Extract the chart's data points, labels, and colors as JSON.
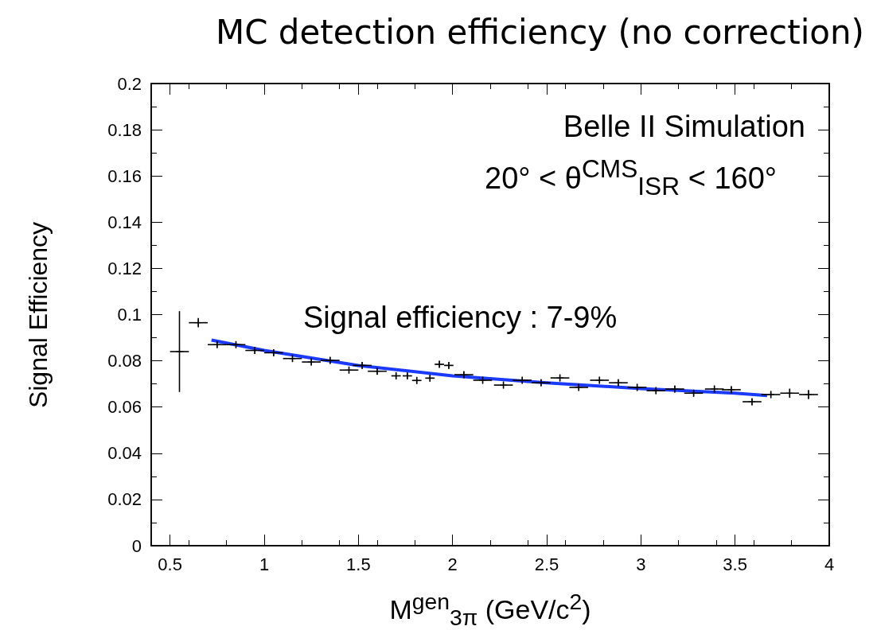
{
  "chart_data": {
    "type": "scatter",
    "title": "MC detection efficiency (no correction)",
    "xlabel": "M$^{gen}$$_{3π}$ (GeV/c$^{2}$)",
    "ylabel": "Signal Efficiency",
    "annotations": [
      "Belle II Simulation",
      "20° < θ$^{CMS}$$_{ISR}$ < 160°",
      "Signal efficiency : 7-9%"
    ],
    "xlim": [
      0.4,
      4
    ],
    "xticks": [
      0.5,
      1,
      1.5,
      2,
      2.5,
      3,
      3.5,
      4
    ],
    "ylim": [
      0,
      0.2
    ],
    "yticks": [
      0,
      0.02,
      0.04,
      0.06,
      0.08,
      0.1,
      0.12,
      0.14,
      0.16,
      0.18,
      0.2
    ],
    "grid": false,
    "series": [
      {
        "color": "#000000",
        "x": [
          0.55,
          0.65,
          0.75,
          0.85,
          0.95,
          1.05,
          1.15,
          1.25,
          1.35,
          1.45,
          1.52,
          1.6,
          1.7,
          1.76,
          1.81,
          1.88,
          1.93,
          1.98,
          2.06,
          2.16,
          2.27,
          2.37,
          2.47,
          2.57,
          2.67,
          2.78,
          2.88,
          2.98,
          3.08,
          3.18,
          3.28,
          3.39,
          3.48,
          3.59,
          3.69,
          3.79,
          3.89
        ],
        "values": [
          0.084,
          0.0965,
          0.087,
          0.087,
          0.0845,
          0.0835,
          0.081,
          0.0795,
          0.0802,
          0.076,
          0.078,
          0.0755,
          0.0735,
          0.0735,
          0.0715,
          0.0725,
          0.0785,
          0.078,
          0.074,
          0.0716,
          0.0695,
          0.0716,
          0.0705,
          0.0726,
          0.0685,
          0.0716,
          0.0705,
          0.0685,
          0.0671,
          0.0678,
          0.066,
          0.0678,
          0.0675,
          0.0623,
          0.0654,
          0.066,
          0.0654
        ],
        "errors": [
          0.0175,
          0.002,
          0.0015,
          0.0015,
          0.0015,
          0.0015,
          0.0015,
          0.0015,
          0.0015,
          0.0015,
          0.0015,
          0.0015,
          0.0015,
          0.0015,
          0.0015,
          0.0015,
          0.0015,
          0.0015,
          0.0015,
          0.0015,
          0.0015,
          0.0015,
          0.0015,
          0.0015,
          0.0015,
          0.0015,
          0.0015,
          0.0015,
          0.0015,
          0.0015,
          0.0015,
          0.0015,
          0.0015,
          0.0015,
          0.0015,
          0.002,
          0.002
        ],
        "xerrors": [
          0.05,
          0.05,
          0.05,
          0.05,
          0.05,
          0.05,
          0.05,
          0.05,
          0.05,
          0.05,
          0.05,
          0.05,
          0.025,
          0.025,
          0.025,
          0.025,
          0.025,
          0.025,
          0.05,
          0.05,
          0.05,
          0.05,
          0.05,
          0.05,
          0.05,
          0.05,
          0.05,
          0.05,
          0.05,
          0.05,
          0.05,
          0.05,
          0.05,
          0.05,
          0.05,
          0.05,
          0.05
        ]
      },
      {
        "type": "line",
        "color": "#1a3aff",
        "x": [
          0.72,
          1.0,
          1.5,
          2.0,
          2.5,
          3.0,
          3.5,
          3.67
        ],
        "values": [
          0.089,
          0.0845,
          0.078,
          0.0735,
          0.0705,
          0.068,
          0.066,
          0.065
        ]
      }
    ]
  }
}
